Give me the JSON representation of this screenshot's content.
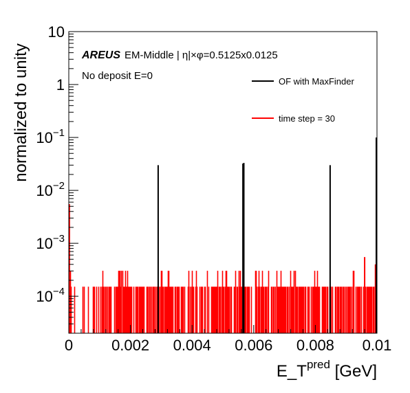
{
  "chart_data": {
    "type": "histogram",
    "title": "",
    "xlabel": "E_T",
    "xlabel_superscript": "pred",
    "xlabel_unit": "[GeV]",
    "ylabel": "normalized to unity",
    "xlim": [
      0,
      0.01
    ],
    "ylim": [
      2e-05,
      10
    ],
    "yscale": "log",
    "grid": false,
    "x_ticks": [
      {
        "value": 0,
        "label": "0"
      },
      {
        "value": 0.002,
        "label": "0.002"
      },
      {
        "value": 0.004,
        "label": "0.004"
      },
      {
        "value": 0.006,
        "label": "0.006"
      },
      {
        "value": 0.008,
        "label": "0.008"
      },
      {
        "value": 0.01,
        "label": "0.01"
      }
    ],
    "y_ticks": [
      {
        "value": 10,
        "base": "10",
        "exp": ""
      },
      {
        "value": 1,
        "base": "1",
        "exp": ""
      },
      {
        "value": 0.1,
        "base": "10",
        "exp": "−1"
      },
      {
        "value": 0.01,
        "base": "10",
        "exp": "−2"
      },
      {
        "value": 0.001,
        "base": "10",
        "exp": "−3"
      },
      {
        "value": 0.0001,
        "base": "10",
        "exp": "−4"
      }
    ],
    "annotations": {
      "brand": "AREUS",
      "subtitle": "EM-Middle | η|×φ=0.5125x0.0125",
      "note": "No deposit E=0"
    },
    "legend": {
      "placement": "top-right",
      "entries": [
        {
          "label": "OF with MaxFinder",
          "color": "#000000"
        },
        {
          "label": "time step = 30",
          "color": "#ff0000"
        }
      ]
    },
    "series": [
      {
        "name": "OF with MaxFinder",
        "color": "#000000",
        "style": "spikes",
        "points": [
          {
            "x": 0.0029,
            "y": 0.03
          },
          {
            "x": 0.00565,
            "y": 0.032
          },
          {
            "x": 0.00568,
            "y": 0.033
          },
          {
            "x": 0.00848,
            "y": 0.03
          },
          {
            "x": 0.01,
            "y": 0.1
          }
        ]
      },
      {
        "name": "time step = 30",
        "color": "#ff0000",
        "style": "noise-histogram",
        "typical_value": 0.00015,
        "high_value": 0.0003,
        "points": [
          {
            "x": 2e-05,
            "y": 0.0055
          },
          {
            "x": 0.0096,
            "y": 0.00055
          },
          {
            "x": 0.00995,
            "y": 0.0004
          }
        ]
      }
    ]
  }
}
